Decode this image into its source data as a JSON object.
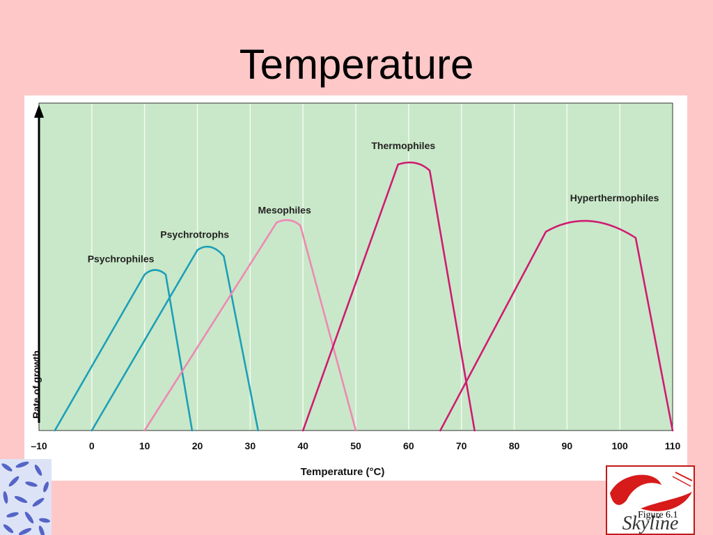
{
  "slide": {
    "title": "Temperature"
  },
  "figure_caption": "Figure 6.1",
  "logo_text": "Skyline",
  "colors": {
    "background": "#FFC8C8",
    "plot_area": "#C9E8C9",
    "teal": "#1C9FB8",
    "pink": "#EE88B3",
    "magenta": "#D01B72"
  },
  "chart_data": {
    "type": "line",
    "title": "",
    "xlabel": "Temperature (°C)",
    "ylabel": "Rate of growth",
    "xlim": [
      -10,
      110
    ],
    "ylim": [
      0,
      100
    ],
    "x_ticks": [
      -10,
      0,
      10,
      20,
      30,
      40,
      50,
      60,
      70,
      80,
      90,
      100,
      110
    ],
    "x_tick_labels": [
      "–10",
      "0",
      "10",
      "20",
      "30",
      "40",
      "50",
      "60",
      "70",
      "80",
      "90",
      "100",
      "110"
    ],
    "grid": "vertical",
    "legend": "none (curves labeled directly)",
    "series": [
      {
        "name": "Psychrophiles",
        "color": "#1C9FB8",
        "label_x": 5.5,
        "label_y": 55,
        "points": [
          [
            -7,
            0
          ],
          [
            10,
            51
          ],
          [
            12,
            54
          ],
          [
            14,
            51
          ],
          [
            19,
            0
          ]
        ]
      },
      {
        "name": "Psychrotrophs",
        "color": "#1C9FB8",
        "label_x": 19.5,
        "label_y": 63,
        "points": [
          [
            0,
            0
          ],
          [
            20,
            59
          ],
          [
            22.5,
            62
          ],
          [
            25,
            57
          ],
          [
            31.5,
            0
          ]
        ]
      },
      {
        "name": "Mesophiles",
        "color": "#EE88B3",
        "label_x": 36.5,
        "label_y": 71,
        "points": [
          [
            10,
            0
          ],
          [
            35,
            68
          ],
          [
            37.5,
            70
          ],
          [
            39.5,
            67
          ],
          [
            50,
            0
          ]
        ]
      },
      {
        "name": "Thermophiles",
        "color": "#D01B72",
        "label_x": 59,
        "label_y": 92,
        "points": [
          [
            40,
            0
          ],
          [
            58,
            87
          ],
          [
            61.5,
            89
          ],
          [
            64,
            85
          ],
          [
            72.5,
            0
          ]
        ]
      },
      {
        "name": "Hyperthermophiles",
        "color": "#D01B72",
        "label_x": 99,
        "label_y": 75,
        "points": [
          [
            66,
            0
          ],
          [
            86,
            65
          ],
          [
            94,
            73
          ],
          [
            103,
            63
          ],
          [
            110,
            0
          ]
        ]
      }
    ]
  }
}
